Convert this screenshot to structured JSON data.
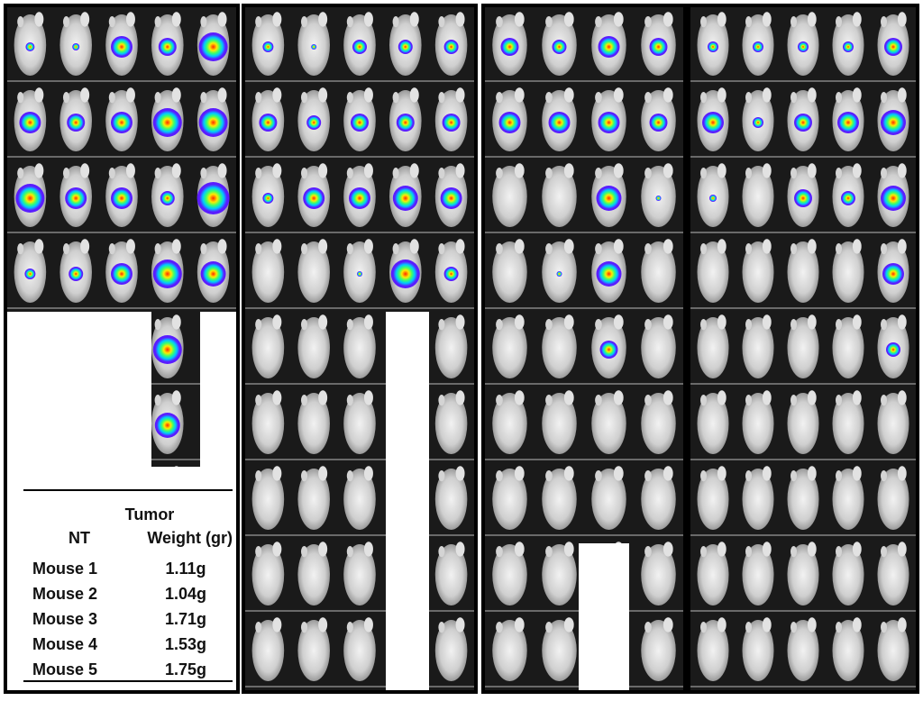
{
  "panels": [
    {
      "id": "panel-1"
    },
    {
      "id": "panel-2"
    },
    {
      "id": "panel-3"
    },
    {
      "id": "panel-4"
    }
  ],
  "table": {
    "header_tumor": "Tumor",
    "header_weight": "Weight (gr)",
    "header_group": "NT",
    "rows": [
      {
        "label": "Mouse 1",
        "value": "1.11g"
      },
      {
        "label": "Mouse 2",
        "value": "1.04g"
      },
      {
        "label": "Mouse 3",
        "value": "1.71g"
      },
      {
        "label": "Mouse 4",
        "value": "1.53g"
      },
      {
        "label": "Mouse 5",
        "value": "1.75g"
      }
    ]
  },
  "colors": {
    "panel_background": "#1a1a1a",
    "mouse_fill": "#d9d9d9",
    "signal_low": "#5a1cff",
    "signal_mid": "#00c8ff",
    "signal_high": "#ffea00"
  }
}
